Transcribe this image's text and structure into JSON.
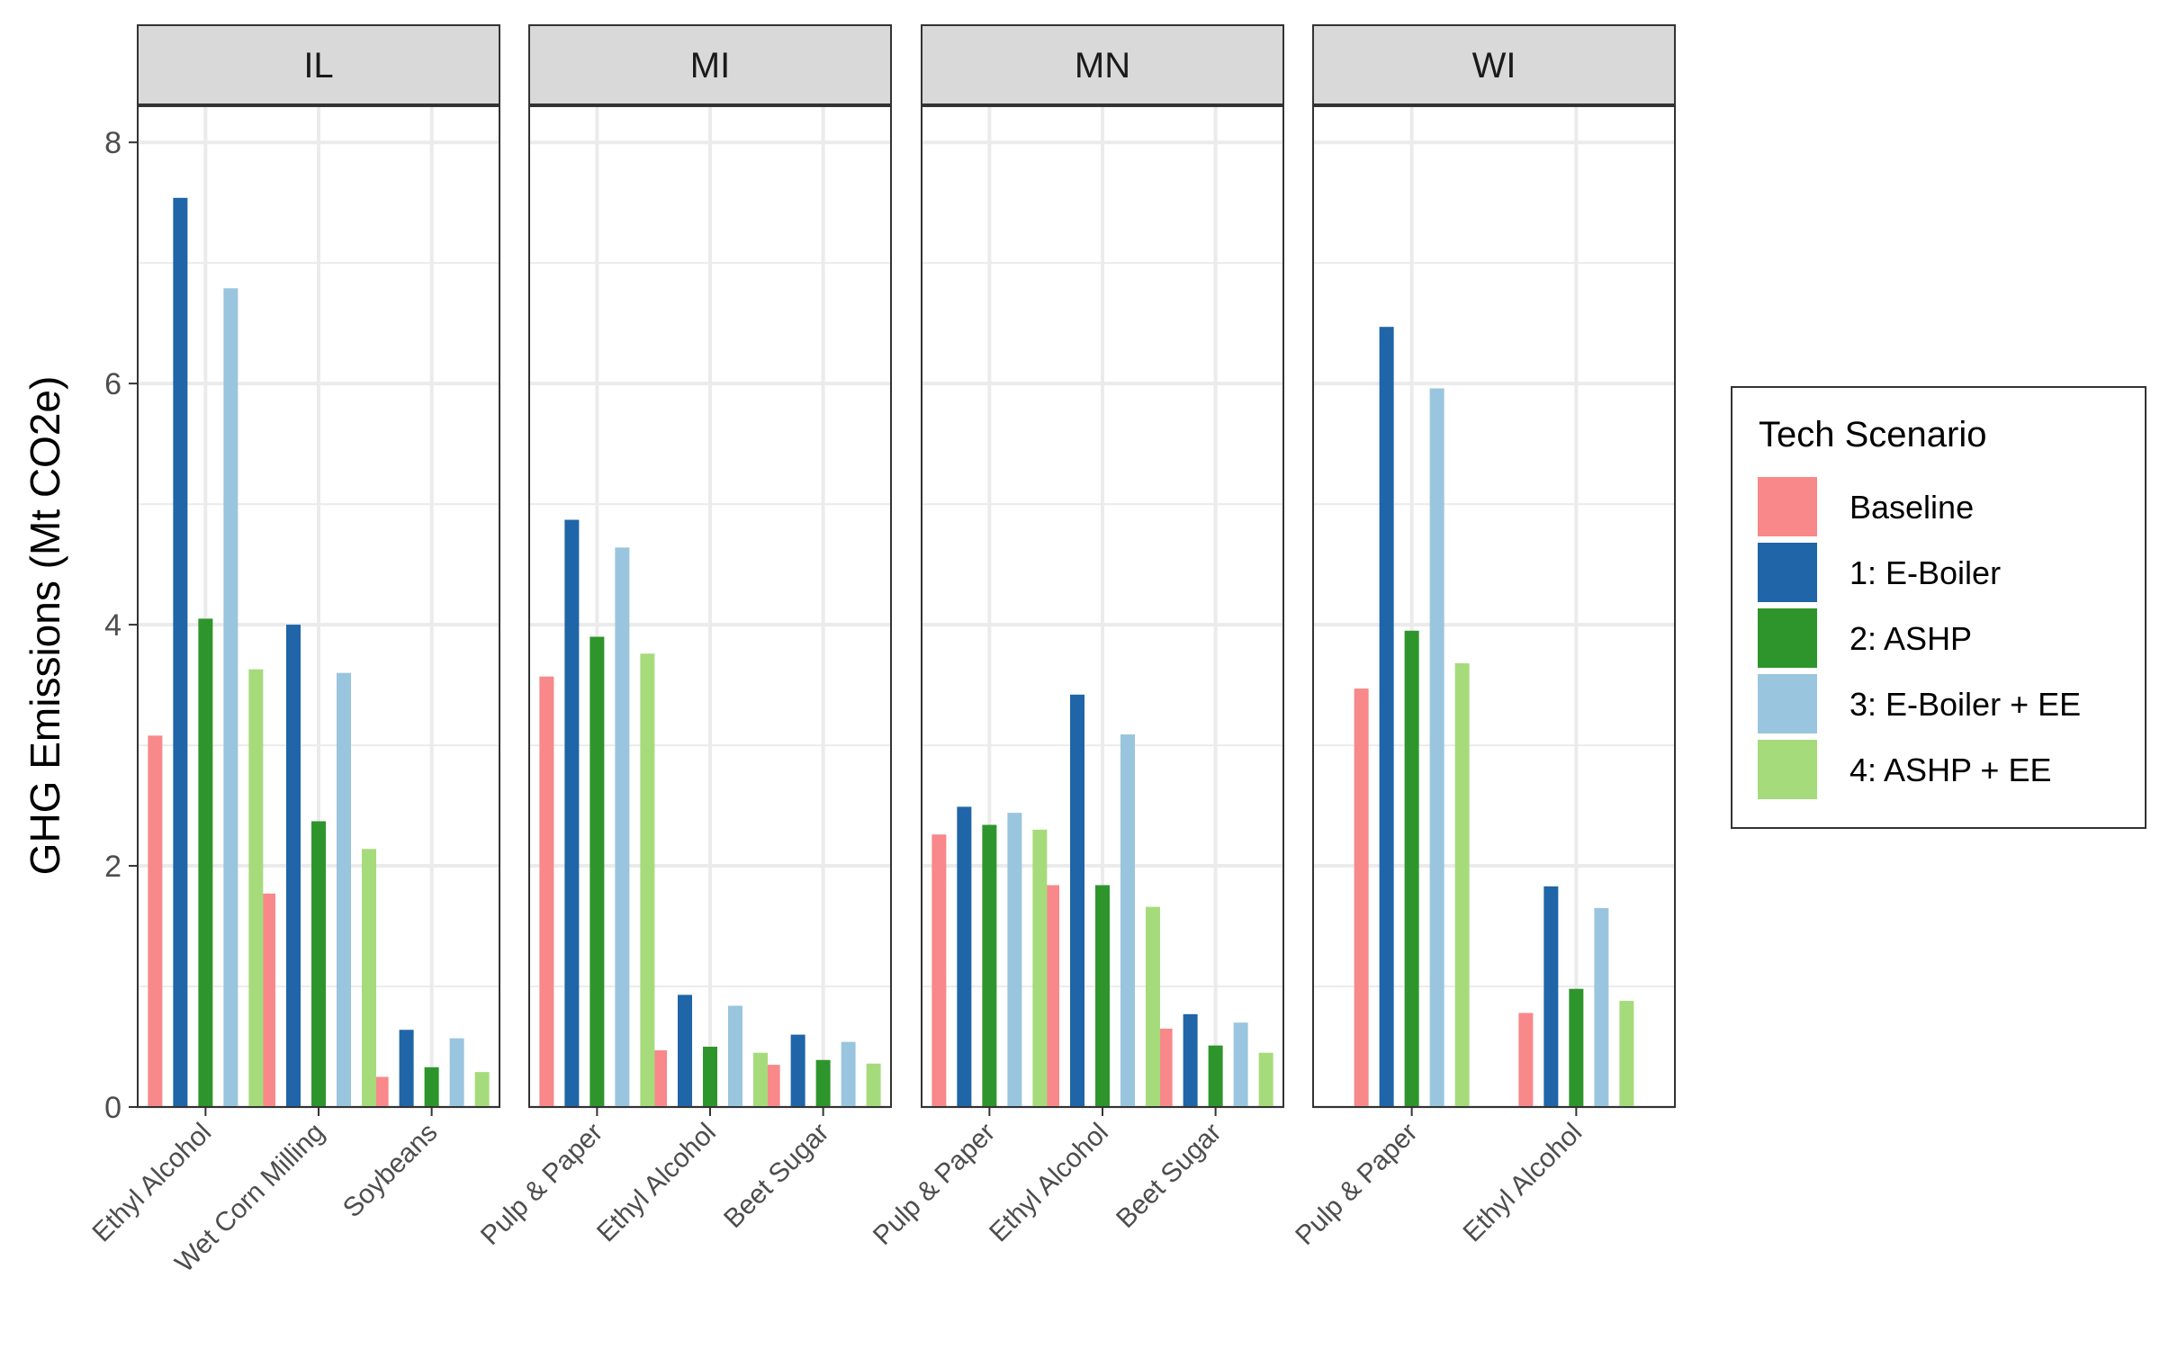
{
  "chart_data": {
    "type": "bar",
    "ylabel": "GHG Emissions (Mt CO2e)",
    "xlabel": "",
    "ylim": [
      0,
      8.3
    ],
    "yticks": [
      0,
      2,
      4,
      6,
      8
    ],
    "grid": true,
    "legend": {
      "title": "Tech Scenario",
      "placement": "right",
      "items": [
        {
          "label": "Baseline",
          "color": "#F8888A"
        },
        {
          "label": "1: E-Boiler",
          "color": "#1F65A8"
        },
        {
          "label": "2: ASHP",
          "color": "#2E952D"
        },
        {
          "label": "3: E-Boiler + EE",
          "color": "#9AC5DE"
        },
        {
          "label": "4: ASHP + EE",
          "color": "#A6DB7B"
        }
      ]
    },
    "facets": [
      {
        "name": "IL",
        "categories": [
          "Ethyl Alcohol",
          "Wet Corn Milling",
          "Soybeans"
        ],
        "series": [
          {
            "name": "Baseline",
            "values": [
              3.08,
              1.77,
              0.25
            ]
          },
          {
            "name": "1: E-Boiler",
            "values": [
              7.54,
              4.0,
              0.64
            ]
          },
          {
            "name": "2: ASHP",
            "values": [
              4.05,
              2.37,
              0.33
            ]
          },
          {
            "name": "3: E-Boiler + EE",
            "values": [
              6.79,
              3.6,
              0.57
            ]
          },
          {
            "name": "4: ASHP + EE",
            "values": [
              3.63,
              2.14,
              0.29
            ]
          }
        ]
      },
      {
        "name": "MI",
        "categories": [
          "Pulp & Paper",
          "Ethyl Alcohol",
          "Beet Sugar"
        ],
        "series": [
          {
            "name": "Baseline",
            "values": [
              3.57,
              0.47,
              0.35
            ]
          },
          {
            "name": "1: E-Boiler",
            "values": [
              4.87,
              0.93,
              0.6
            ]
          },
          {
            "name": "2: ASHP",
            "values": [
              3.9,
              0.5,
              0.39
            ]
          },
          {
            "name": "3: E-Boiler + EE",
            "values": [
              4.64,
              0.84,
              0.54
            ]
          },
          {
            "name": "4: ASHP + EE",
            "values": [
              3.76,
              0.45,
              0.36
            ]
          }
        ]
      },
      {
        "name": "MN",
        "categories": [
          "Pulp & Paper",
          "Ethyl Alcohol",
          "Beet Sugar"
        ],
        "series": [
          {
            "name": "Baseline",
            "values": [
              2.26,
              1.84,
              0.65
            ]
          },
          {
            "name": "1: E-Boiler",
            "values": [
              2.49,
              3.42,
              0.77
            ]
          },
          {
            "name": "2: ASHP",
            "values": [
              2.34,
              1.84,
              0.51
            ]
          },
          {
            "name": "3: E-Boiler + EE",
            "values": [
              2.44,
              3.09,
              0.7
            ]
          },
          {
            "name": "4: ASHP + EE",
            "values": [
              2.3,
              1.66,
              0.45
            ]
          }
        ]
      },
      {
        "name": "WI",
        "categories": [
          "Pulp & Paper",
          "Ethyl Alcohol"
        ],
        "series": [
          {
            "name": "Baseline",
            "values": [
              3.47,
              0.78
            ]
          },
          {
            "name": "1: E-Boiler",
            "values": [
              6.47,
              1.83
            ]
          },
          {
            "name": "2: ASHP",
            "values": [
              3.95,
              0.98
            ]
          },
          {
            "name": "3: E-Boiler + EE",
            "values": [
              5.96,
              1.65
            ]
          },
          {
            "name": "4: ASHP + EE",
            "values": [
              3.68,
              0.88
            ]
          }
        ]
      }
    ]
  }
}
